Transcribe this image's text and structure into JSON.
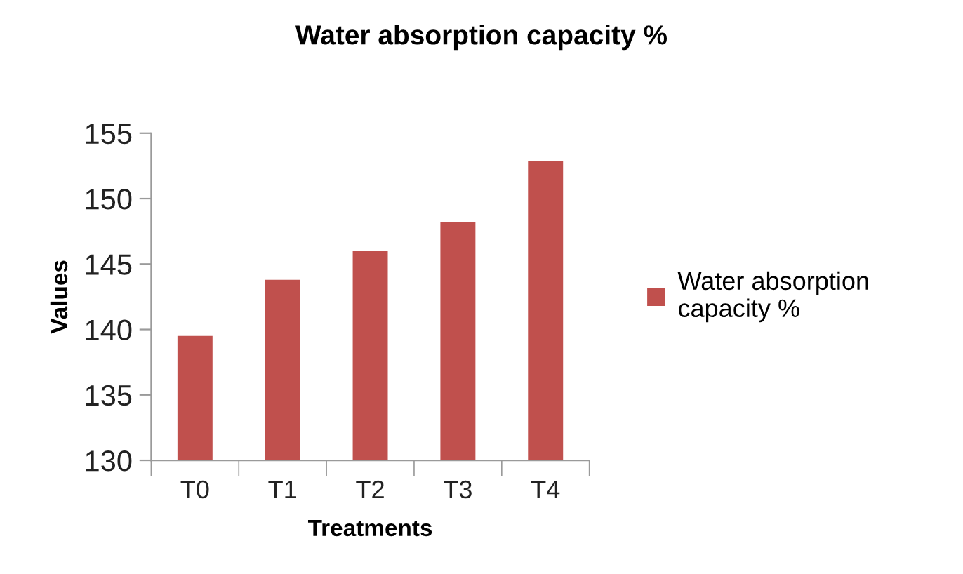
{
  "chart_data": {
    "type": "bar",
    "title": "Water absorption capacity %",
    "xlabel": "Treatments",
    "ylabel": "Values",
    "categories": [
      "T0",
      "T1",
      "T2",
      "T3",
      "T4"
    ],
    "series": [
      {
        "name": "Water absorption capacity %",
        "color": "#c0504d",
        "values": [
          139.5,
          143.8,
          146.0,
          148.2,
          152.9
        ]
      }
    ],
    "ylim": [
      130,
      155
    ],
    "yticks": [
      130,
      135,
      140,
      145,
      150,
      155
    ],
    "grid": false,
    "legend": "right"
  }
}
